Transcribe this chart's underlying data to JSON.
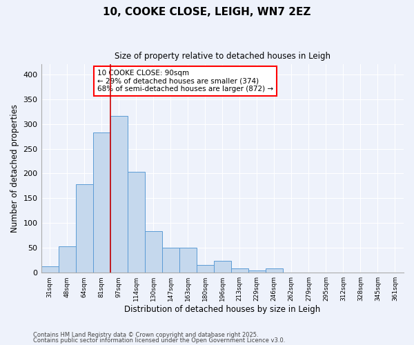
{
  "title": "10, COOKE CLOSE, LEIGH, WN7 2EZ",
  "subtitle": "Size of property relative to detached houses in Leigh",
  "xlabel": "Distribution of detached houses by size in Leigh",
  "ylabel": "Number of detached properties",
  "categories": [
    "31sqm",
    "48sqm",
    "64sqm",
    "81sqm",
    "97sqm",
    "114sqm",
    "130sqm",
    "147sqm",
    "163sqm",
    "180sqm",
    "196sqm",
    "213sqm",
    "229sqm",
    "246sqm",
    "262sqm",
    "279sqm",
    "295sqm",
    "312sqm",
    "328sqm",
    "345sqm",
    "361sqm"
  ],
  "values": [
    13,
    53,
    178,
    283,
    316,
    203,
    84,
    51,
    50,
    16,
    24,
    8,
    4,
    8,
    0,
    0,
    0,
    0,
    0,
    0,
    0
  ],
  "bar_color": "#c5d8ed",
  "bar_edge_color": "#5b9bd5",
  "background_color": "#eef2fb",
  "grid_color": "#ffffff",
  "vline_color": "#cc0000",
  "vline_index": 3.5,
  "annotation_box_text": "10 COOKE CLOSE: 90sqm\n← 29% of detached houses are smaller (374)\n68% of semi-detached houses are larger (872) →",
  "ylim": [
    0,
    420
  ],
  "yticks": [
    0,
    50,
    100,
    150,
    200,
    250,
    300,
    350,
    400
  ],
  "footnote1": "Contains HM Land Registry data © Crown copyright and database right 2025.",
  "footnote2": "Contains public sector information licensed under the Open Government Licence v3.0."
}
